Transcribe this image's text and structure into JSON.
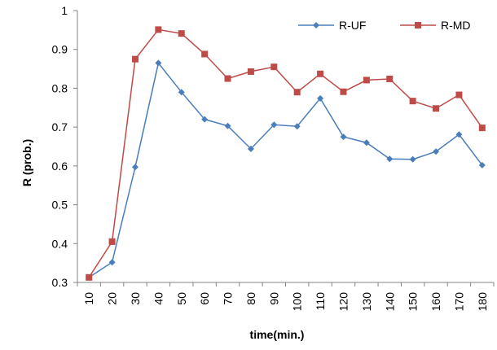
{
  "chart_data": {
    "type": "line",
    "title": "",
    "xlabel": "time(min.)",
    "ylabel": "R (prob.)",
    "categories": [
      "10",
      "20",
      "30",
      "40",
      "50",
      "60",
      "70",
      "80",
      "90",
      "100",
      "110",
      "120",
      "130",
      "140",
      "150",
      "160",
      "170",
      "180"
    ],
    "y_ticks": [
      "0.3",
      "0.4",
      "0.5",
      "0.6",
      "0.7",
      "0.8",
      "0.9",
      "1"
    ],
    "ylim": [
      0.3,
      1.0
    ],
    "grid": false,
    "legend_position": "top-right",
    "series": [
      {
        "name": "R-UF",
        "color": "#4a7ebb",
        "marker": "diamond",
        "values": [
          0.313,
          0.352,
          0.597,
          0.865,
          0.79,
          0.72,
          0.703,
          0.644,
          0.706,
          0.702,
          0.774,
          0.675,
          0.66,
          0.618,
          0.617,
          0.637,
          0.681,
          0.602
        ]
      },
      {
        "name": "R-MD",
        "color": "#be4b48",
        "marker": "square",
        "values": [
          0.313,
          0.405,
          0.875,
          0.951,
          0.941,
          0.888,
          0.825,
          0.843,
          0.855,
          0.79,
          0.837,
          0.791,
          0.821,
          0.824,
          0.767,
          0.748,
          0.783,
          0.698
        ]
      }
    ]
  }
}
